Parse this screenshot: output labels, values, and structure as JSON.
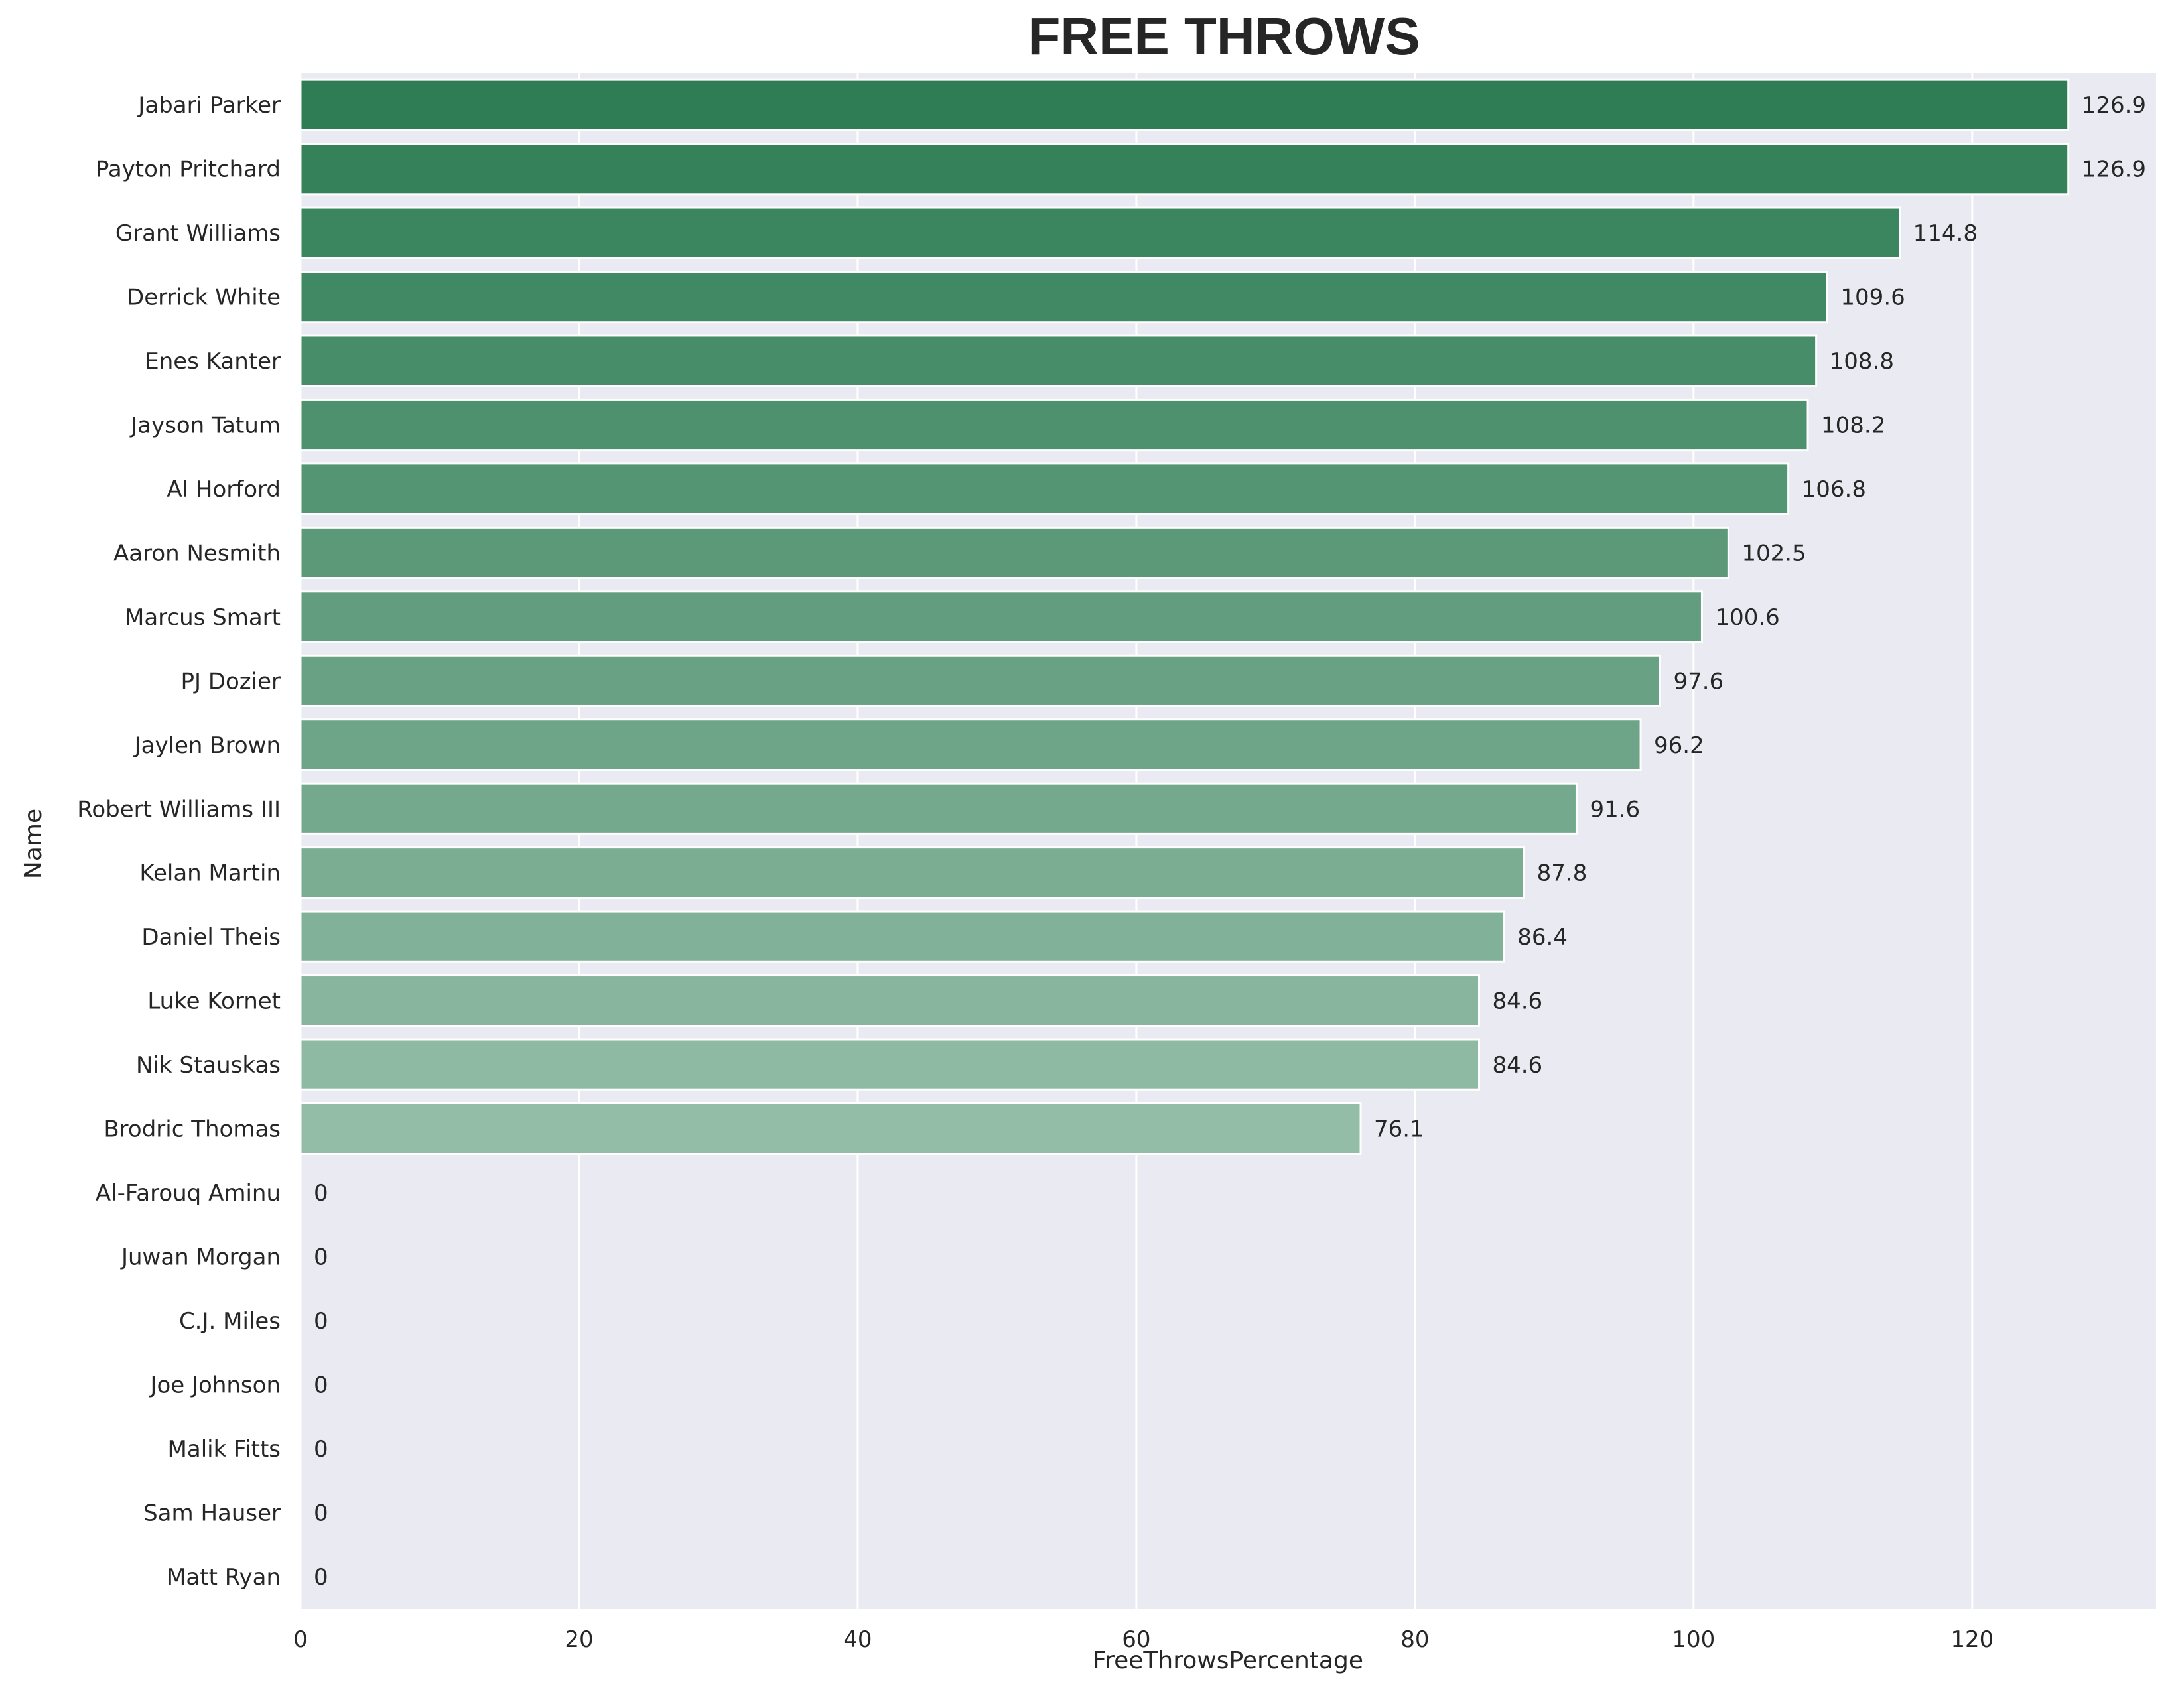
{
  "chart_data": {
    "type": "bar",
    "orientation": "horizontal",
    "title": "FREE THROWS",
    "xlabel": "FreeThrowsPercentage",
    "ylabel": "Name",
    "xlim": [
      0,
      133.2
    ],
    "xticks": [
      0,
      20,
      40,
      60,
      80,
      100,
      120
    ],
    "grid": true,
    "categories": [
      "Jabari Parker",
      "Payton Pritchard",
      "Grant Williams",
      "Derrick White",
      "Enes Kanter",
      "Jayson Tatum",
      "Al Horford",
      "Aaron Nesmith",
      "Marcus Smart",
      "PJ Dozier",
      "Jaylen Brown",
      "Robert Williams III",
      "Kelan Martin",
      "Daniel Theis",
      "Luke Kornet",
      "Nik Stauskas",
      "Brodric Thomas",
      "Al-Farouq Aminu",
      "Juwan Morgan",
      "C.J. Miles",
      "Joe Johnson",
      "Malik Fitts",
      "Sam Hauser",
      "Matt Ryan"
    ],
    "values": [
      126.9,
      126.9,
      114.8,
      109.6,
      108.8,
      108.2,
      106.8,
      102.5,
      100.6,
      97.6,
      96.2,
      91.6,
      87.8,
      86.4,
      84.6,
      84.6,
      76.1,
      0,
      0,
      0,
      0,
      0,
      0,
      0
    ],
    "data_labels": [
      "126.9",
      "126.9",
      "114.8",
      "109.6",
      "108.8",
      "108.2",
      "106.8",
      "102.5",
      "100.6",
      "97.6",
      "96.2",
      "91.6",
      "87.8",
      "86.4",
      "84.6",
      "84.6",
      "76.1",
      "0",
      "0",
      "0",
      "0",
      "0",
      "0",
      "0"
    ],
    "colors": {
      "bar_darkest": "#2e7d55",
      "bar_lightest": "#c1d9cb",
      "plot_background": "#eaeaf2",
      "grid": "#ffffff"
    }
  }
}
